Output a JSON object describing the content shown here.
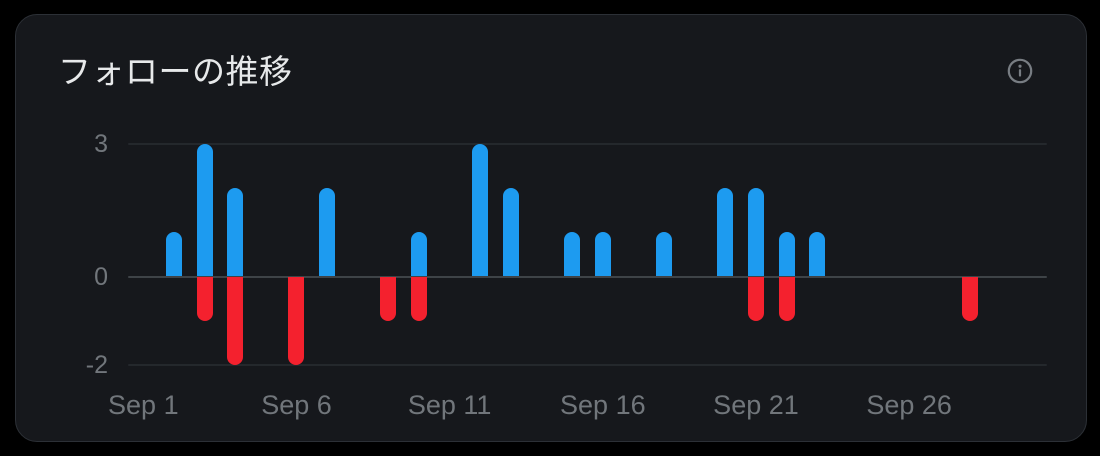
{
  "card": {
    "title": "フォローの推移",
    "info_button_label": "info"
  },
  "colors": {
    "page_bg": "#000000",
    "card_bg": "#16181c",
    "card_border": "#2c3036",
    "title_text": "#e7e9ea",
    "tick_text": "#71767b",
    "gridline": "#24282c",
    "zero_line": "#3e4347",
    "positive_bar": "#1d9bf0",
    "negative_bar": "#f4212e",
    "info_icon": "#787d83"
  },
  "chart_data": {
    "type": "bar",
    "title": "フォローの推移",
    "categories": [
      "Sep 1",
      "Sep 2",
      "Sep 3",
      "Sep 4",
      "Sep 5",
      "Sep 6",
      "Sep 7",
      "Sep 8",
      "Sep 9",
      "Sep 10",
      "Sep 11",
      "Sep 12",
      "Sep 13",
      "Sep 14",
      "Sep 15",
      "Sep 16",
      "Sep 17",
      "Sep 18",
      "Sep 19",
      "Sep 20",
      "Sep 21",
      "Sep 22",
      "Sep 23",
      "Sep 24",
      "Sep 25",
      "Sep 26",
      "Sep 27",
      "Sep 28",
      "Sep 29",
      "Sep 30"
    ],
    "series": [
      {
        "name": "positive",
        "color": "#1d9bf0",
        "values": [
          0,
          1,
          3,
          2,
          0,
          0,
          2,
          0,
          0,
          1,
          0,
          3,
          2,
          0,
          1,
          1,
          0,
          1,
          0,
          2,
          2,
          1,
          1,
          0,
          0,
          0,
          0,
          0,
          0,
          0
        ]
      },
      {
        "name": "negative",
        "color": "#f4212e",
        "values": [
          0,
          0,
          -1,
          -2,
          0,
          -2,
          0,
          0,
          -1,
          -1,
          0,
          0,
          0,
          0,
          0,
          0,
          0,
          0,
          0,
          0,
          -1,
          -1,
          0,
          0,
          0,
          0,
          0,
          -1,
          0,
          0
        ]
      }
    ],
    "x_tick_labels": [
      "Sep 1",
      "Sep 6",
      "Sep 11",
      "Sep 16",
      "Sep 21",
      "Sep 26"
    ],
    "x_tick_day_indices": [
      0,
      5,
      10,
      15,
      20,
      25
    ],
    "y_ticks": [
      3,
      0,
      -2
    ],
    "y_tick_labels": [
      "3",
      "0",
      "-2"
    ],
    "ylim": [
      -2,
      3
    ],
    "grid": "horizontal gridlines at y=3, y=0, y=-2; zero line emphasized",
    "legend": "none",
    "xlabel": "",
    "ylabel": ""
  }
}
